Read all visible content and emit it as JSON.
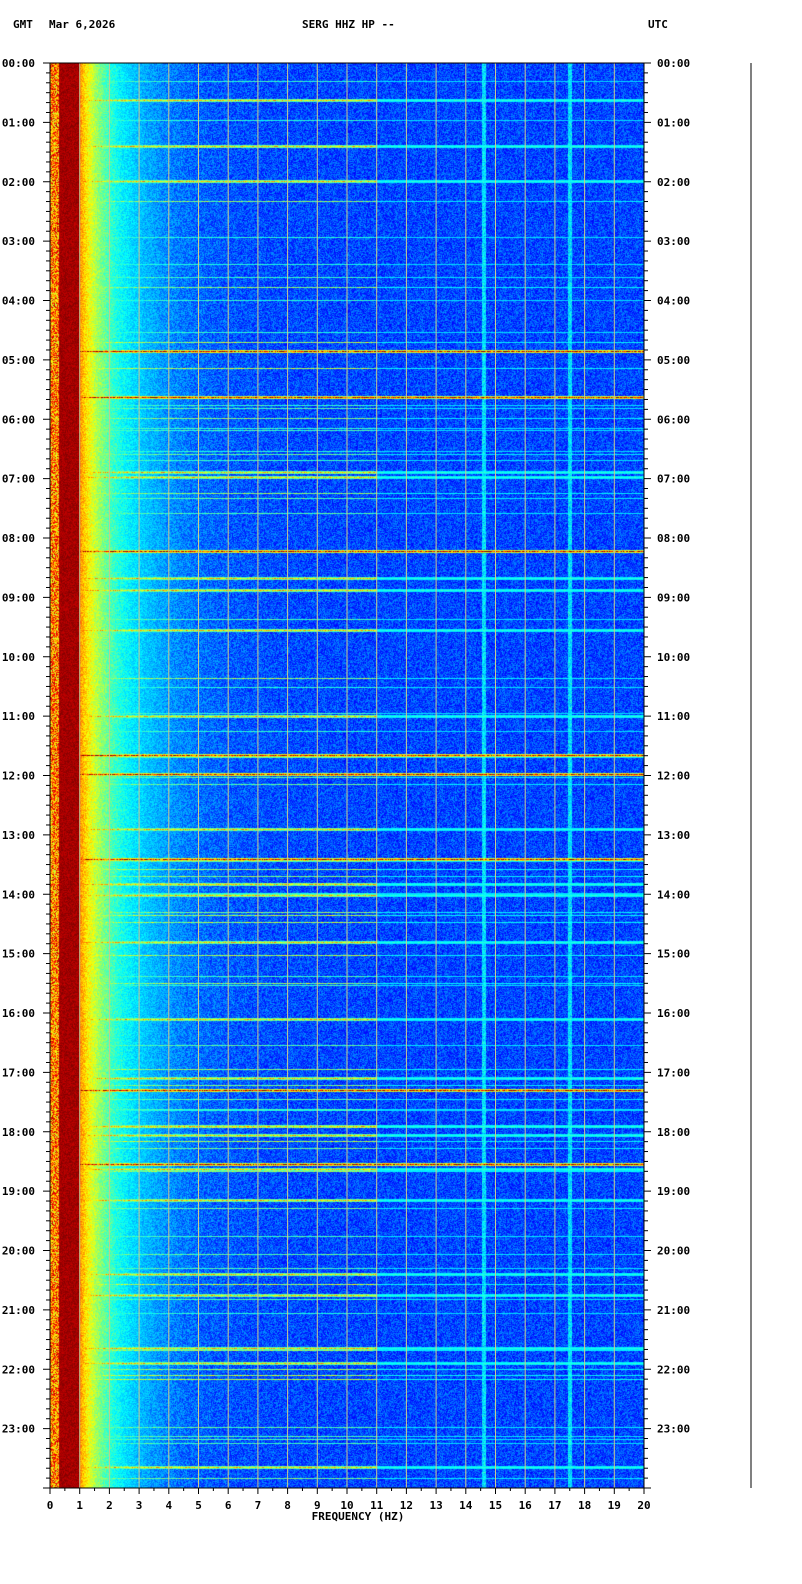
{
  "header": {
    "left_tz": "GMT",
    "date": "Mar 6,2026",
    "station": "SERG HHZ HP --",
    "right_tz": "UTC"
  },
  "chart_data": {
    "type": "heatmap",
    "title": "SERG HHZ HP --",
    "xlabel": "FREQUENCY (HZ)",
    "ylabel": "",
    "xlim": [
      0,
      20
    ],
    "x_ticks": [
      "0",
      "1",
      "2",
      "3",
      "4",
      "5",
      "6",
      "7",
      "8",
      "9",
      "10",
      "11",
      "12",
      "13",
      "14",
      "15",
      "16",
      "17",
      "18",
      "19",
      "20"
    ],
    "y_ticks": [
      "00:00",
      "01:00",
      "02:00",
      "03:00",
      "04:00",
      "05:00",
      "06:00",
      "07:00",
      "08:00",
      "09:00",
      "10:00",
      "11:00",
      "12:00",
      "13:00",
      "14:00",
      "15:00",
      "16:00",
      "17:00",
      "18:00",
      "19:00",
      "20:00",
      "21:00",
      "22:00",
      "23:00"
    ],
    "time_range_hours": [
      0,
      24
    ],
    "grid": true,
    "colormap": [
      "#00007f",
      "#0000ff",
      "#00a0ff",
      "#00ffff",
      "#7fff7f",
      "#ffff00",
      "#ff7f00",
      "#ff0000",
      "#7f0000"
    ],
    "low_frequency_band_hz": [
      0.3,
      1.0
    ],
    "persistent_frequency_lines_hz": [
      14.6,
      17.5
    ],
    "event_times_hours": [
      0.62,
      1.4,
      1.98,
      4.85,
      5.62,
      6.88,
      6.98,
      8.22,
      8.68,
      8.88,
      9.55,
      11.0,
      11.65,
      11.98,
      12.9,
      13.4,
      13.82,
      14.02,
      14.8,
      16.1,
      17.1,
      17.3,
      17.9,
      18.05,
      18.55,
      18.62,
      19.15,
      20.4,
      20.75,
      21.65,
      21.9,
      23.65
    ],
    "strong_event_times_hours": [
      4.85,
      5.62,
      8.22,
      11.65,
      11.98,
      13.4,
      17.3,
      18.55
    ]
  },
  "colors": {
    "background": "#ffffff",
    "grid": "#c8c890",
    "text": "#000000"
  }
}
